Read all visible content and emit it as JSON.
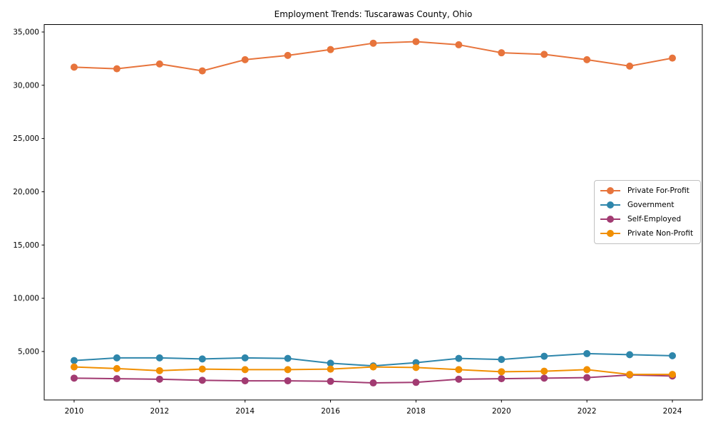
{
  "figure": {
    "background_color": "#ffffff",
    "axis_color": "#000000",
    "text_color": "#000000"
  },
  "chart_data": {
    "type": "line",
    "title": "Employment Trends: Tuscarawas County, Ohio",
    "xlabel": "",
    "ylabel": "",
    "grid": false,
    "legend_position": "center-right",
    "marker": "circle",
    "x": [
      2010,
      2011,
      2012,
      2013,
      2014,
      2015,
      2016,
      2017,
      2018,
      2019,
      2020,
      2021,
      2022,
      2023,
      2024
    ],
    "series": [
      {
        "name": "Private For-Profit",
        "color": "#E7743C",
        "values": [
          31700,
          31550,
          32000,
          31350,
          32400,
          32800,
          33350,
          33950,
          34100,
          33800,
          33050,
          32900,
          32400,
          31800,
          32550
        ]
      },
      {
        "name": "Government",
        "color": "#2E86AB",
        "values": [
          4150,
          4400,
          4400,
          4300,
          4400,
          4350,
          3900,
          3650,
          3950,
          4350,
          4250,
          4550,
          4800,
          4700,
          4600
        ]
      },
      {
        "name": "Self-Employed",
        "color": "#A23B72",
        "values": [
          2500,
          2450,
          2400,
          2300,
          2250,
          2250,
          2200,
          2050,
          2100,
          2400,
          2450,
          2500,
          2550,
          2800,
          2700
        ]
      },
      {
        "name": "Private Non-Profit",
        "color": "#F18F01",
        "values": [
          3550,
          3400,
          3200,
          3350,
          3300,
          3300,
          3350,
          3550,
          3500,
          3300,
          3100,
          3150,
          3300,
          2850,
          2850
        ]
      }
    ],
    "xlim": [
      2009.3,
      2024.7
    ],
    "ylim": [
      450,
      35700
    ],
    "xticks": {
      "values": [
        2010,
        2012,
        2014,
        2016,
        2018,
        2020,
        2022,
        2024
      ],
      "labels": [
        "2010",
        "2012",
        "2014",
        "2016",
        "2018",
        "2020",
        "2022",
        "2024"
      ]
    },
    "yticks": {
      "values": [
        5000,
        10000,
        15000,
        20000,
        25000,
        30000,
        35000
      ],
      "labels": [
        "5,000",
        "10,000",
        "15,000",
        "20,000",
        "25,000",
        "30,000",
        "35,000"
      ]
    }
  }
}
